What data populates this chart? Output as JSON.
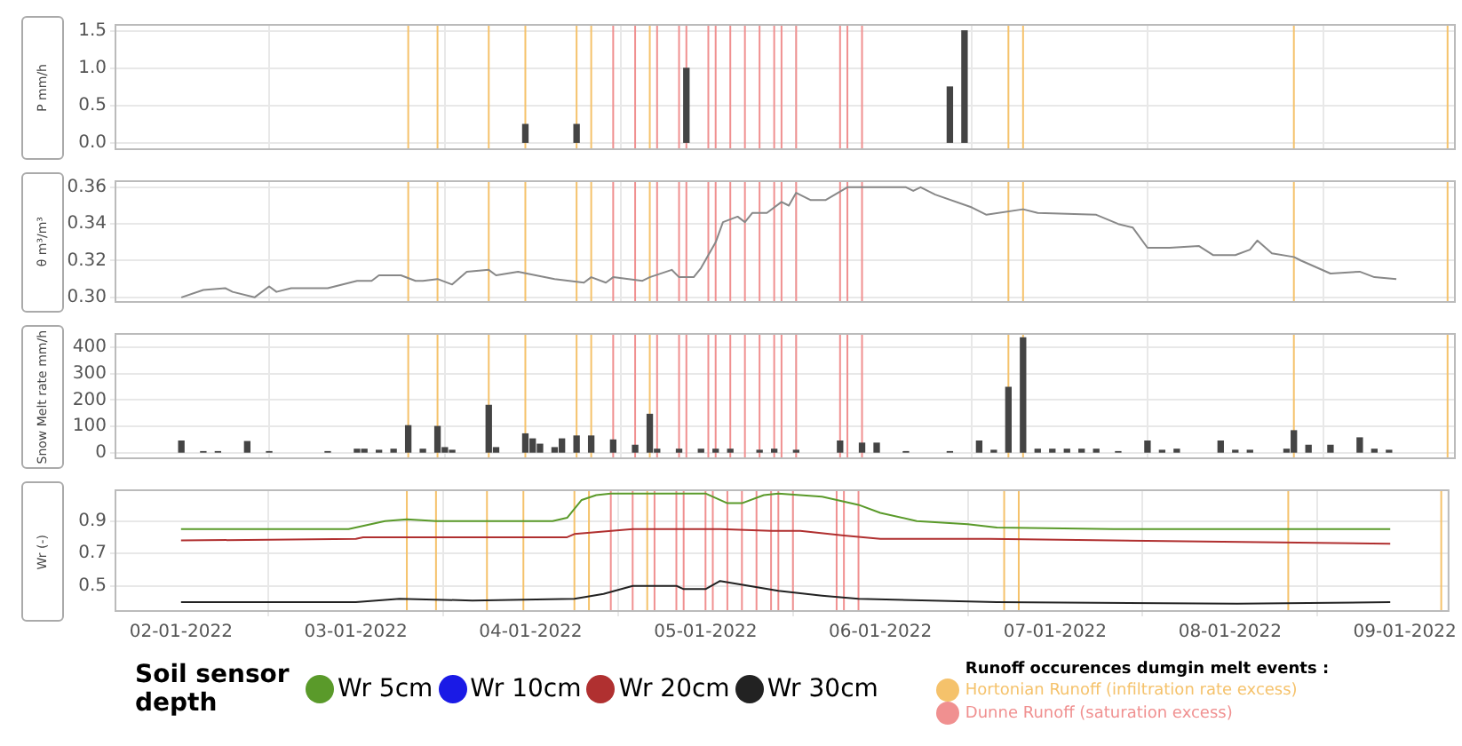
{
  "chart_data": [
    {
      "type": "bar",
      "ylabel": "P mm/h",
      "x": [
        "2022-01-03T23:00",
        "2022-01-04T06:00",
        "2022-01-04T21:00",
        "2022-01-06T09:00",
        "2022-01-06T11:00"
      ],
      "values": [
        0.25,
        0.25,
        1.0,
        0.75,
        1.5
      ],
      "color": "#444444",
      "xlim": [
        "2022-01-01T15:00",
        "2022-01-09T06:00"
      ],
      "xticks": [
        {
          "value": "2022-01-02",
          "label": null
        },
        {
          "value": "2022-01-03",
          "label": null
        },
        {
          "value": "2022-01-04",
          "label": null
        },
        {
          "value": "2022-01-05",
          "label": null
        },
        {
          "value": "2022-01-06",
          "label": null
        },
        {
          "value": "2022-01-07",
          "label": null
        },
        {
          "value": "2022-01-08",
          "label": null
        },
        {
          "value": "2022-01-09",
          "label": null
        }
      ],
      "ylim": [
        -0.08,
        1.58
      ],
      "yticks": [
        {
          "value": 0,
          "label": "0.0"
        },
        {
          "value": 0.5,
          "label": "0.5"
        },
        {
          "value": 1,
          "label": "1.0"
        },
        {
          "value": 1.5,
          "label": "1.5"
        }
      ],
      "grid": true,
      "tick_labels": "y",
      "ref_lines": [
        {
          "axis": "x",
          "value": "2022-01-03T07:00",
          "color": "#f5c26b"
        },
        {
          "axis": "x",
          "value": "2022-01-03T11:00",
          "color": "#f5c26b"
        },
        {
          "axis": "x",
          "value": "2022-01-03T18:00",
          "color": "#f5c26b"
        },
        {
          "axis": "x",
          "value": "2022-01-03T23:00",
          "color": "#f5c26b"
        },
        {
          "axis": "x",
          "value": "2022-01-04T06:00",
          "color": "#f5c26b"
        },
        {
          "axis": "x",
          "value": "2022-01-04T08:00",
          "color": "#f5c26b"
        },
        {
          "axis": "x",
          "value": "2022-01-04T16:00",
          "color": "#f5c26b"
        },
        {
          "axis": "x",
          "value": "2022-01-06T17:00",
          "color": "#f5c26b"
        },
        {
          "axis": "x",
          "value": "2022-01-06T19:00",
          "color": "#f5c26b"
        },
        {
          "axis": "x",
          "value": "2022-01-08T08:00",
          "color": "#f5c26b"
        },
        {
          "axis": "x",
          "value": "2022-01-09T05:00",
          "color": "#f5c26b"
        },
        {
          "axis": "x",
          "value": "2022-01-04T11:00",
          "color": "#f09090"
        },
        {
          "axis": "x",
          "value": "2022-01-04T14:00",
          "color": "#f09090"
        },
        {
          "axis": "x",
          "value": "2022-01-04T17:00",
          "color": "#f09090"
        },
        {
          "axis": "x",
          "value": "2022-01-04T20:00",
          "color": "#f09090"
        },
        {
          "axis": "x",
          "value": "2022-01-04T21:00",
          "color": "#f09090"
        },
        {
          "axis": "x",
          "value": "2022-01-05T00:00",
          "color": "#f09090"
        },
        {
          "axis": "x",
          "value": "2022-01-05T01:00",
          "color": "#f09090"
        },
        {
          "axis": "x",
          "value": "2022-01-05T03:00",
          "color": "#f09090"
        },
        {
          "axis": "x",
          "value": "2022-01-05T05:00",
          "color": "#f09090"
        },
        {
          "axis": "x",
          "value": "2022-01-05T07:00",
          "color": "#f09090"
        },
        {
          "axis": "x",
          "value": "2022-01-05T09:00",
          "color": "#f09090"
        },
        {
          "axis": "x",
          "value": "2022-01-05T10:00",
          "color": "#f09090"
        },
        {
          "axis": "x",
          "value": "2022-01-05T12:00",
          "color": "#f09090"
        },
        {
          "axis": "x",
          "value": "2022-01-05T18:00",
          "color": "#f09090"
        },
        {
          "axis": "x",
          "value": "2022-01-05T19:00",
          "color": "#f09090"
        },
        {
          "axis": "x",
          "value": "2022-01-05T21:00",
          "color": "#f09090"
        }
      ]
    },
    {
      "type": "line",
      "ylabel": "θ m³/m³",
      "x": [
        "2022-01-02T00:00",
        "2022-01-02T03:00",
        "2022-01-02T06:00",
        "2022-01-02T07:00",
        "2022-01-02T10:00",
        "2022-01-02T12:00",
        "2022-01-02T13:00",
        "2022-01-02T15:00",
        "2022-01-02T20:00",
        "2022-01-03T00:00",
        "2022-01-03T02:00",
        "2022-01-03T03:00",
        "2022-01-03T06:00",
        "2022-01-03T08:00",
        "2022-01-03T09:00",
        "2022-01-03T11:00",
        "2022-01-03T13:00",
        "2022-01-03T15:00",
        "2022-01-03T18:00",
        "2022-01-03T19:00",
        "2022-01-03T22:00",
        "2022-01-04T03:00",
        "2022-01-04T07:00",
        "2022-01-04T08:00",
        "2022-01-04T10:00",
        "2022-01-04T11:00",
        "2022-01-04T15:00",
        "2022-01-04T16:00",
        "2022-01-04T19:00",
        "2022-01-04T20:00",
        "2022-01-04T22:00",
        "2022-01-04T23:00",
        "2022-01-05T01:00",
        "2022-01-05T02:00",
        "2022-01-05T04:00",
        "2022-01-05T05:00",
        "2022-01-05T06:00",
        "2022-01-05T08:00",
        "2022-01-05T10:00",
        "2022-01-05T11:00",
        "2022-01-05T12:00",
        "2022-01-05T14:00",
        "2022-01-05T16:00",
        "2022-01-05T19:00",
        "2022-01-06T03:00",
        "2022-01-06T04:00",
        "2022-01-06T05:00",
        "2022-01-06T07:00",
        "2022-01-06T12:00",
        "2022-01-06T14:00",
        "2022-01-06T19:00",
        "2022-01-06T21:00",
        "2022-01-07T05:00",
        "2022-01-07T08:00",
        "2022-01-07T10:00",
        "2022-01-07T12:00",
        "2022-01-07T15:00",
        "2022-01-07T19:00",
        "2022-01-07T21:00",
        "2022-01-08T00:00",
        "2022-01-08T02:00",
        "2022-01-08T03:00",
        "2022-01-08T05:00",
        "2022-01-08T08:00",
        "2022-01-08T09:00",
        "2022-01-08T13:00",
        "2022-01-08T17:00",
        "2022-01-08T19:00",
        "2022-01-08T22:00"
      ],
      "values": [
        0.3,
        0.304,
        0.305,
        0.303,
        0.3,
        0.306,
        0.303,
        0.305,
        0.305,
        0.309,
        0.309,
        0.312,
        0.312,
        0.309,
        0.309,
        0.31,
        0.307,
        0.314,
        0.315,
        0.312,
        0.314,
        0.31,
        0.308,
        0.311,
        0.308,
        0.311,
        0.309,
        0.311,
        0.315,
        0.311,
        0.311,
        0.316,
        0.33,
        0.341,
        0.344,
        0.341,
        0.346,
        0.346,
        0.352,
        0.35,
        0.357,
        0.353,
        0.353,
        0.36,
        0.36,
        0.358,
        0.36,
        0.356,
        0.349,
        0.345,
        0.348,
        0.346,
        0.345,
        0.34,
        0.338,
        0.327,
        0.327,
        0.328,
        0.323,
        0.323,
        0.326,
        0.331,
        0.324,
        0.322,
        0.32,
        0.313,
        0.314,
        0.311,
        0.31
      ],
      "color": "#888888",
      "xlim": [
        "2022-01-01T15:00",
        "2022-01-09T06:00"
      ],
      "xticks": [
        {
          "value": "2022-01-02",
          "label": null
        },
        {
          "value": "2022-01-03",
          "label": null
        },
        {
          "value": "2022-01-04",
          "label": null
        },
        {
          "value": "2022-01-05",
          "label": null
        },
        {
          "value": "2022-01-06",
          "label": null
        },
        {
          "value": "2022-01-07",
          "label": null
        },
        {
          "value": "2022-01-08",
          "label": null
        },
        {
          "value": "2022-01-09",
          "label": null
        }
      ],
      "ylim": [
        0.2975,
        0.3633
      ],
      "yticks": [
        {
          "value": 0.3,
          "label": "0.30"
        },
        {
          "value": 0.32,
          "label": "0.32"
        },
        {
          "value": 0.34,
          "label": "0.34"
        },
        {
          "value": 0.36,
          "label": "0.36"
        }
      ],
      "grid": true,
      "tick_labels": "y",
      "ref_lines": [
        {
          "axis": "x",
          "value": "2022-01-03T07:00",
          "color": "#f5c26b"
        },
        {
          "axis": "x",
          "value": "2022-01-03T11:00",
          "color": "#f5c26b"
        },
        {
          "axis": "x",
          "value": "2022-01-03T18:00",
          "color": "#f5c26b"
        },
        {
          "axis": "x",
          "value": "2022-01-03T23:00",
          "color": "#f5c26b"
        },
        {
          "axis": "x",
          "value": "2022-01-04T06:00",
          "color": "#f5c26b"
        },
        {
          "axis": "x",
          "value": "2022-01-04T08:00",
          "color": "#f5c26b"
        },
        {
          "axis": "x",
          "value": "2022-01-04T16:00",
          "color": "#f5c26b"
        },
        {
          "axis": "x",
          "value": "2022-01-06T17:00",
          "color": "#f5c26b"
        },
        {
          "axis": "x",
          "value": "2022-01-06T19:00",
          "color": "#f5c26b"
        },
        {
          "axis": "x",
          "value": "2022-01-08T08:00",
          "color": "#f5c26b"
        },
        {
          "axis": "x",
          "value": "2022-01-09T05:00",
          "color": "#f5c26b"
        },
        {
          "axis": "x",
          "value": "2022-01-04T11:00",
          "color": "#f09090"
        },
        {
          "axis": "x",
          "value": "2022-01-04T14:00",
          "color": "#f09090"
        },
        {
          "axis": "x",
          "value": "2022-01-04T17:00",
          "color": "#f09090"
        },
        {
          "axis": "x",
          "value": "2022-01-04T20:00",
          "color": "#f09090"
        },
        {
          "axis": "x",
          "value": "2022-01-04T21:00",
          "color": "#f09090"
        },
        {
          "axis": "x",
          "value": "2022-01-05T00:00",
          "color": "#f09090"
        },
        {
          "axis": "x",
          "value": "2022-01-05T01:00",
          "color": "#f09090"
        },
        {
          "axis": "x",
          "value": "2022-01-05T03:00",
          "color": "#f09090"
        },
        {
          "axis": "x",
          "value": "2022-01-05T05:00",
          "color": "#f09090"
        },
        {
          "axis": "x",
          "value": "2022-01-05T07:00",
          "color": "#f09090"
        },
        {
          "axis": "x",
          "value": "2022-01-05T09:00",
          "color": "#f09090"
        },
        {
          "axis": "x",
          "value": "2022-01-05T10:00",
          "color": "#f09090"
        },
        {
          "axis": "x",
          "value": "2022-01-05T12:00",
          "color": "#f09090"
        },
        {
          "axis": "x",
          "value": "2022-01-05T18:00",
          "color": "#f09090"
        },
        {
          "axis": "x",
          "value": "2022-01-05T19:00",
          "color": "#f09090"
        },
        {
          "axis": "x",
          "value": "2022-01-05T21:00",
          "color": "#f09090"
        }
      ]
    },
    {
      "type": "bar",
      "ylabel": "Snow Melt rate mm/h",
      "x": [
        "2022-01-02T00:00",
        "2022-01-02T03:00",
        "2022-01-02T05:00",
        "2022-01-02T09:00",
        "2022-01-02T12:00",
        "2022-01-02T20:00",
        "2022-01-03T00:00",
        "2022-01-03T01:00",
        "2022-01-03T03:00",
        "2022-01-03T05:00",
        "2022-01-03T07:00",
        "2022-01-03T09:00",
        "2022-01-03T11:00",
        "2022-01-03T12:00",
        "2022-01-03T13:00",
        "2022-01-03T18:00",
        "2022-01-03T19:00",
        "2022-01-03T23:00",
        "2022-01-04T00:00",
        "2022-01-04T01:00",
        "2022-01-04T03:00",
        "2022-01-04T04:00",
        "2022-01-04T06:00",
        "2022-01-04T08:00",
        "2022-01-04T11:00",
        "2022-01-04T14:00",
        "2022-01-04T16:00",
        "2022-01-04T17:00",
        "2022-01-04T20:00",
        "2022-01-04T23:00",
        "2022-01-05T01:00",
        "2022-01-05T03:00",
        "2022-01-05T07:00",
        "2022-01-05T09:00",
        "2022-01-05T12:00",
        "2022-01-05T18:00",
        "2022-01-05T21:00",
        "2022-01-05T23:00",
        "2022-01-06T03:00",
        "2022-01-06T09:00",
        "2022-01-06T13:00",
        "2022-01-06T15:00",
        "2022-01-06T17:00",
        "2022-01-06T19:00",
        "2022-01-06T21:00",
        "2022-01-06T23:00",
        "2022-01-07T01:00",
        "2022-01-07T03:00",
        "2022-01-07T05:00",
        "2022-01-07T08:00",
        "2022-01-07T12:00",
        "2022-01-07T14:00",
        "2022-01-07T16:00",
        "2022-01-07T22:00",
        "2022-01-08T00:00",
        "2022-01-08T02:00",
        "2022-01-08T07:00",
        "2022-01-08T08:00",
        "2022-01-08T10:00",
        "2022-01-08T13:00",
        "2022-01-08T17:00",
        "2022-01-08T19:00",
        "2022-01-08T21:00"
      ],
      "values": [
        45,
        5,
        5,
        43,
        5,
        5,
        14,
        14,
        10,
        14,
        103,
        14,
        100,
        20,
        10,
        180,
        20,
        72,
        53,
        33,
        20,
        53,
        64,
        64,
        49,
        29,
        146,
        14,
        14,
        14,
        14,
        14,
        10,
        14,
        10,
        45,
        37,
        37,
        5,
        5,
        45,
        10,
        248,
        435,
        14,
        14,
        14,
        14,
        14,
        5,
        45,
        10,
        14,
        45,
        10,
        10,
        14,
        84,
        29,
        29,
        57,
        14,
        10
      ],
      "color": "#444444",
      "xlim": [
        "2022-01-01T15:00",
        "2022-01-09T06:00"
      ],
      "xticks": [
        {
          "value": "2022-01-02",
          "label": null
        },
        {
          "value": "2022-01-03",
          "label": null
        },
        {
          "value": "2022-01-04",
          "label": null
        },
        {
          "value": "2022-01-05",
          "label": null
        },
        {
          "value": "2022-01-06",
          "label": null
        },
        {
          "value": "2022-01-07",
          "label": null
        },
        {
          "value": "2022-01-08",
          "label": null
        },
        {
          "value": "2022-01-09",
          "label": null
        }
      ],
      "ylim": [
        -20,
        450
      ],
      "yticks": [
        0,
        100,
        200,
        300,
        400
      ],
      "grid": true,
      "tick_labels": "y",
      "ref_lines": [
        {
          "axis": "x",
          "value": "2022-01-03T07:00",
          "color": "#f5c26b"
        },
        {
          "axis": "x",
          "value": "2022-01-03T11:00",
          "color": "#f5c26b"
        },
        {
          "axis": "x",
          "value": "2022-01-03T18:00",
          "color": "#f5c26b"
        },
        {
          "axis": "x",
          "value": "2022-01-03T23:00",
          "color": "#f5c26b"
        },
        {
          "axis": "x",
          "value": "2022-01-04T06:00",
          "color": "#f5c26b"
        },
        {
          "axis": "x",
          "value": "2022-01-04T08:00",
          "color": "#f5c26b"
        },
        {
          "axis": "x",
          "value": "2022-01-04T16:00",
          "color": "#f5c26b"
        },
        {
          "axis": "x",
          "value": "2022-01-06T17:00",
          "color": "#f5c26b"
        },
        {
          "axis": "x",
          "value": "2022-01-06T19:00",
          "color": "#f5c26b"
        },
        {
          "axis": "x",
          "value": "2022-01-08T08:00",
          "color": "#f5c26b"
        },
        {
          "axis": "x",
          "value": "2022-01-09T05:00",
          "color": "#f5c26b"
        },
        {
          "axis": "x",
          "value": "2022-01-04T11:00",
          "color": "#f09090"
        },
        {
          "axis": "x",
          "value": "2022-01-04T14:00",
          "color": "#f09090"
        },
        {
          "axis": "x",
          "value": "2022-01-04T17:00",
          "color": "#f09090"
        },
        {
          "axis": "x",
          "value": "2022-01-04T20:00",
          "color": "#f09090"
        },
        {
          "axis": "x",
          "value": "2022-01-04T21:00",
          "color": "#f09090"
        },
        {
          "axis": "x",
          "value": "2022-01-05T00:00",
          "color": "#f09090"
        },
        {
          "axis": "x",
          "value": "2022-01-05T01:00",
          "color": "#f09090"
        },
        {
          "axis": "x",
          "value": "2022-01-05T03:00",
          "color": "#f09090"
        },
        {
          "axis": "x",
          "value": "2022-01-05T05:00",
          "color": "#f09090"
        },
        {
          "axis": "x",
          "value": "2022-01-05T07:00",
          "color": "#f09090"
        },
        {
          "axis": "x",
          "value": "2022-01-05T09:00",
          "color": "#f09090"
        },
        {
          "axis": "x",
          "value": "2022-01-05T10:00",
          "color": "#f09090"
        },
        {
          "axis": "x",
          "value": "2022-01-05T12:00",
          "color": "#f09090"
        },
        {
          "axis": "x",
          "value": "2022-01-05T18:00",
          "color": "#f09090"
        },
        {
          "axis": "x",
          "value": "2022-01-05T19:00",
          "color": "#f09090"
        },
        {
          "axis": "x",
          "value": "2022-01-05T21:00",
          "color": "#f09090"
        }
      ]
    },
    {
      "type": "line",
      "ylabel": "Wr (-)",
      "legend_title": "Soil sensor depth",
      "legend": "bottom",
      "annotations": [
        "Runoff occurences dumgin melt events :"
      ],
      "series": [
        {
          "name": "Wr 5cm",
          "color": "#5a9a2a",
          "x": [
            "2022-01-02T00:00",
            "2022-01-02T23:00",
            "2022-01-03T04:00",
            "2022-01-03T07:00",
            "2022-01-03T11:00",
            "2022-01-04T03:00",
            "2022-01-04T05:00",
            "2022-01-04T07:00",
            "2022-01-04T09:00",
            "2022-01-04T11:00",
            "2022-01-05T00:00",
            "2022-01-05T03:00",
            "2022-01-05T05:00",
            "2022-01-05T08:00",
            "2022-01-05T10:00",
            "2022-01-05T16:00",
            "2022-01-05T21:00",
            "2022-01-06T00:00",
            "2022-01-06T05:00",
            "2022-01-06T12:00",
            "2022-01-06T16:00",
            "2022-01-07T08:00",
            "2022-01-08T22:00"
          ],
          "values": [
            0.85,
            0.85,
            0.9,
            0.91,
            0.9,
            0.9,
            0.92,
            1.03,
            1.06,
            1.07,
            1.07,
            1.01,
            1.01,
            1.06,
            1.07,
            1.05,
            1.0,
            0.95,
            0.9,
            0.88,
            0.86,
            0.85,
            0.85
          ]
        },
        {
          "name": "Wr 10cm",
          "color": "#1a1ae6"
        },
        {
          "name": "Wr 20cm",
          "color": "#b03030",
          "x": [
            "2022-01-02T00:00",
            "2022-01-03T00:00",
            "2022-01-03T01:00",
            "2022-01-04T05:00",
            "2022-01-04T06:00",
            "2022-01-04T14:00",
            "2022-01-04T20:00",
            "2022-01-05T00:00",
            "2022-01-05T02:00",
            "2022-01-05T09:00",
            "2022-01-05T13:00",
            "2022-01-05T19:00",
            "2022-01-06T00:00",
            "2022-01-06T15:00",
            "2022-01-08T22:00"
          ],
          "values": [
            0.78,
            0.79,
            0.8,
            0.8,
            0.82,
            0.85,
            0.85,
            0.85,
            0.85,
            0.84,
            0.84,
            0.81,
            0.79,
            0.79,
            0.76
          ]
        },
        {
          "name": "Wr 30cm",
          "color": "#222222",
          "x": [
            "2022-01-02T00:00",
            "2022-01-03T00:00",
            "2022-01-03T06:00",
            "2022-01-03T16:00",
            "2022-01-04T06:00",
            "2022-01-04T10:00",
            "2022-01-04T14:00",
            "2022-01-04T20:00",
            "2022-01-04T21:00",
            "2022-01-05T00:00",
            "2022-01-05T02:00",
            "2022-01-05T06:00",
            "2022-01-05T10:00",
            "2022-01-05T16:00",
            "2022-01-05T21:00",
            "2022-01-06T16:00",
            "2022-01-08T01:00",
            "2022-01-08T22:00"
          ],
          "values": [
            0.4,
            0.4,
            0.42,
            0.41,
            0.42,
            0.45,
            0.5,
            0.5,
            0.48,
            0.48,
            0.53,
            0.5,
            0.47,
            0.44,
            0.42,
            0.4,
            0.39,
            0.4
          ]
        }
      ],
      "xlim": [
        "2022-01-01T15:00",
        "2022-01-09T06:00"
      ],
      "xticks": [
        {
          "value": "2022-01-02",
          "label": "02-01-2022"
        },
        {
          "value": "2022-01-03",
          "label": "03-01-2022"
        },
        {
          "value": "2022-01-04",
          "label": "04-01-2022"
        },
        {
          "value": "2022-01-05",
          "label": "05-01-2022"
        },
        {
          "value": "2022-01-06",
          "label": "06-01-2022"
        },
        {
          "value": "2022-01-07",
          "label": "07-01-2022"
        },
        {
          "value": "2022-01-08",
          "label": "08-01-2022"
        },
        {
          "value": "2022-01-09",
          "label": "09-01-2022"
        }
      ],
      "ylim": [
        0.345,
        1.09
      ],
      "yticks": [
        0.5,
        0.7,
        0.9
      ],
      "grid": true,
      "ref_lines": [
        {
          "axis": "x",
          "value": "2022-01-03T07:00",
          "color": "#f5c26b",
          "label": "Hortonian Runoff (infiltration rate excess)"
        },
        {
          "axis": "x",
          "value": "2022-01-03T11:00",
          "color": "#f5c26b"
        },
        {
          "axis": "x",
          "value": "2022-01-03T18:00",
          "color": "#f5c26b"
        },
        {
          "axis": "x",
          "value": "2022-01-03T23:00",
          "color": "#f5c26b"
        },
        {
          "axis": "x",
          "value": "2022-01-04T06:00",
          "color": "#f5c26b"
        },
        {
          "axis": "x",
          "value": "2022-01-04T08:00",
          "color": "#f5c26b"
        },
        {
          "axis": "x",
          "value": "2022-01-04T16:00",
          "color": "#f5c26b"
        },
        {
          "axis": "x",
          "value": "2022-01-06T17:00",
          "color": "#f5c26b"
        },
        {
          "axis": "x",
          "value": "2022-01-06T19:00",
          "color": "#f5c26b"
        },
        {
          "axis": "x",
          "value": "2022-01-08T08:00",
          "color": "#f5c26b"
        },
        {
          "axis": "x",
          "value": "2022-01-09T05:00",
          "color": "#f5c26b"
        },
        {
          "axis": "x",
          "value": "2022-01-04T11:00",
          "color": "#f09090",
          "label": "Dunne Runoff (saturation excess)"
        },
        {
          "axis": "x",
          "value": "2022-01-04T14:00",
          "color": "#f09090"
        },
        {
          "axis": "x",
          "value": "2022-01-04T17:00",
          "color": "#f09090"
        },
        {
          "axis": "x",
          "value": "2022-01-04T20:00",
          "color": "#f09090"
        },
        {
          "axis": "x",
          "value": "2022-01-04T21:00",
          "color": "#f09090"
        },
        {
          "axis": "x",
          "value": "2022-01-05T00:00",
          "color": "#f09090"
        },
        {
          "axis": "x",
          "value": "2022-01-05T01:00",
          "color": "#f09090"
        },
        {
          "axis": "x",
          "value": "2022-01-05T03:00",
          "color": "#f09090"
        },
        {
          "axis": "x",
          "value": "2022-01-05T05:00",
          "color": "#f09090"
        },
        {
          "axis": "x",
          "value": "2022-01-05T07:00",
          "color": "#f09090"
        },
        {
          "axis": "x",
          "value": "2022-01-05T09:00",
          "color": "#f09090"
        },
        {
          "axis": "x",
          "value": "2022-01-05T10:00",
          "color": "#f09090"
        },
        {
          "axis": "x",
          "value": "2022-01-05T12:00",
          "color": "#f09090"
        },
        {
          "axis": "x",
          "value": "2022-01-05T18:00",
          "color": "#f09090"
        },
        {
          "axis": "x",
          "value": "2022-01-05T19:00",
          "color": "#f09090"
        },
        {
          "axis": "x",
          "value": "2022-01-05T21:00",
          "color": "#f09090"
        }
      ]
    }
  ]
}
